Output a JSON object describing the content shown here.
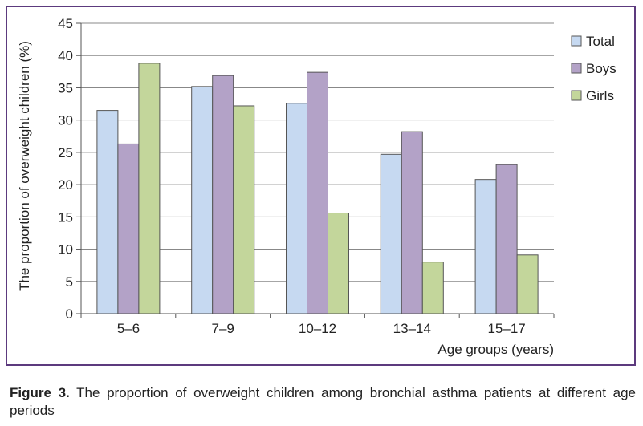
{
  "chart_data": {
    "type": "bar",
    "categories": [
      "5–6",
      "7–9",
      "10–12",
      "13–14",
      "15–17"
    ],
    "series": [
      {
        "name": "Total",
        "values": [
          31.5,
          35.2,
          32.6,
          24.7,
          20.8
        ]
      },
      {
        "name": "Boys",
        "values": [
          26.3,
          36.9,
          37.4,
          28.2,
          23.1
        ]
      },
      {
        "name": "Girls",
        "values": [
          38.8,
          32.2,
          15.6,
          8.0,
          9.1
        ]
      }
    ],
    "xlabel": "Age groups (years)",
    "ylabel": "The proportion of overweight children (%)",
    "ylim": [
      0,
      45
    ],
    "yticks": [
      "0",
      "5",
      "10",
      "15",
      "20",
      "25",
      "30",
      "35",
      "40",
      "45"
    ],
    "grid": true,
    "legend_position": "right"
  },
  "colors": {
    "Total": "#c6d9f1",
    "Boys": "#b3a2c7",
    "Girls": "#c3d69b",
    "frame": "#5c3a7e",
    "grid": "#888888"
  },
  "caption": {
    "label": "Figure 3.",
    "text": " The proportion of overweight children among bronchial asthma patients at different age periods"
  }
}
